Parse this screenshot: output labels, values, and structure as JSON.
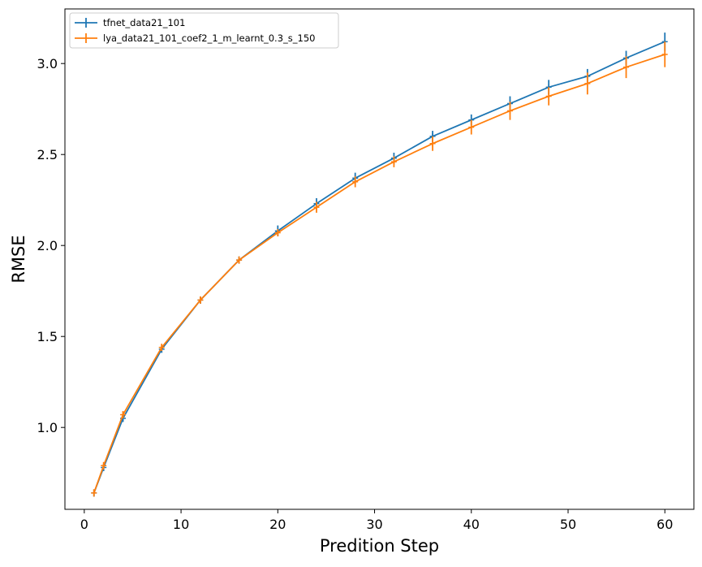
{
  "chart_data": {
    "type": "line",
    "xlabel": "Predition Step",
    "ylabel": "RMSE",
    "xlim": [
      -2,
      63
    ],
    "ylim": [
      0.55,
      3.3
    ],
    "xticks": [
      0,
      10,
      20,
      30,
      40,
      50,
      60
    ],
    "xtick_labels": [
      "0",
      "10",
      "20",
      "30",
      "40",
      "50",
      "60"
    ],
    "yticks": [
      1.0,
      1.5,
      2.0,
      2.5,
      3.0
    ],
    "ytick_labels": [
      "1.0",
      "1.5",
      "2.0",
      "2.5",
      "3.0"
    ],
    "grid": false,
    "legend_position": "top-left",
    "x": [
      1,
      2,
      4,
      8,
      12,
      16,
      20,
      24,
      28,
      32,
      36,
      40,
      44,
      48,
      52,
      56,
      60
    ],
    "series": [
      {
        "name": "tfnet_data21_101",
        "color": "#1f77b4",
        "marker": "+",
        "values": [
          0.64,
          0.78,
          1.05,
          1.43,
          1.7,
          1.92,
          2.08,
          2.23,
          2.37,
          2.48,
          2.6,
          2.69,
          2.78,
          2.87,
          2.93,
          3.03,
          3.12
        ],
        "errors": [
          0.02,
          0.02,
          0.02,
          0.02,
          0.02,
          0.02,
          0.03,
          0.03,
          0.03,
          0.03,
          0.03,
          0.03,
          0.04,
          0.04,
          0.04,
          0.04,
          0.05
        ]
      },
      {
        "name": "lya_data21_101_coef2_1_m_learnt_0.3_s_150",
        "color": "#ff7f0e",
        "marker": "+",
        "values": [
          0.64,
          0.79,
          1.07,
          1.44,
          1.7,
          1.92,
          2.07,
          2.21,
          2.35,
          2.46,
          2.56,
          2.65,
          2.74,
          2.82,
          2.89,
          2.98,
          3.05
        ],
        "errors": [
          0.02,
          0.02,
          0.02,
          0.02,
          0.02,
          0.02,
          0.02,
          0.03,
          0.03,
          0.03,
          0.04,
          0.04,
          0.05,
          0.05,
          0.06,
          0.06,
          0.07
        ]
      }
    ]
  }
}
